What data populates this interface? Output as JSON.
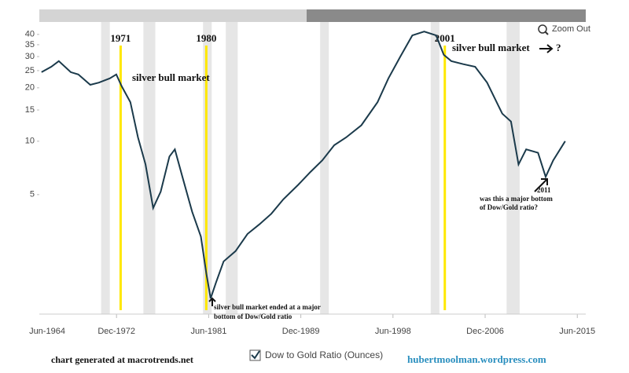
{
  "chart_data": {
    "type": "line",
    "log_scale": true,
    "grid": false,
    "x": [
      1966.0,
      1966.9,
      1967.6,
      1968.7,
      1969.4,
      1970.5,
      1971.3,
      1972.3,
      1972.9,
      1973.4,
      1974.2,
      1974.9,
      1975.6,
      1976.3,
      1977.0,
      1977.8,
      1978.3,
      1979.0,
      1979.9,
      1980.7,
      1981.2,
      1981.6,
      1982.1,
      1982.8,
      1983.9,
      1985.0,
      1986.1,
      1987.2,
      1988.3,
      1989.7,
      1990.8,
      1991.9,
      1993.0,
      1994.1,
      1995.5,
      1997.0,
      1998.0,
      1999.1,
      2000.2,
      2001.3,
      2002.4,
      2003.1,
      2003.8,
      2004.9,
      2006.0,
      2007.1,
      2008.5,
      2009.3,
      2010.0,
      2010.7,
      2011.8,
      2012.5,
      2013.2,
      2014.3
    ],
    "series": [
      {
        "name": "Dow to Gold Ratio (Ounces)",
        "color": "#1b3a4b",
        "values": [
          24.5,
          26.3,
          28.3,
          24.5,
          23.8,
          20.8,
          21.4,
          22.6,
          23.8,
          20.4,
          16.6,
          10.5,
          7.4,
          4.2,
          5.2,
          8.2,
          9.0,
          6.3,
          4.0,
          2.9,
          1.8,
          1.3,
          1.6,
          2.1,
          2.4,
          3.0,
          3.4,
          3.9,
          4.7,
          5.7,
          6.7,
          7.8,
          9.5,
          10.5,
          12.3,
          16.6,
          22.6,
          30,
          39.5,
          41.5,
          39.5,
          30.7,
          28.3,
          27.2,
          26.3,
          21.4,
          14.3,
          12.9,
          7.4,
          9.0,
          8.6,
          6.3,
          7.8,
          10
        ]
      }
    ],
    "xlim": [
      1965.8,
      2016.2
    ],
    "ylim": [
      1.06,
      47
    ],
    "yticks": [
      5,
      10,
      15,
      20,
      25,
      30,
      35,
      40
    ],
    "xticks": [
      {
        "value": 1964.42,
        "label": "Jun-1964"
      },
      {
        "value": 1972.92,
        "label": "Dec-1972"
      },
      {
        "value": 1981.42,
        "label": "Jun-1981"
      },
      {
        "value": 1989.92,
        "label": "Dec-1989"
      },
      {
        "value": 1998.42,
        "label": "Jun-1998"
      },
      {
        "value": 2006.92,
        "label": "Dec-2006"
      },
      {
        "value": 2015.42,
        "label": "Jun-2015"
      }
    ],
    "shaded_regions": [
      [
        1971.5,
        1972.3
      ],
      [
        1975.4,
        1976.5
      ],
      [
        1980.9,
        1981.7
      ],
      [
        1983.0,
        1984.1
      ],
      [
        1991.7,
        1992.5
      ],
      [
        2001.9,
        2002.7
      ],
      [
        2008.9,
        2010.1
      ]
    ],
    "markers": [
      {
        "x": 1973.3,
        "label": "1971"
      },
      {
        "x": 1981.2,
        "label": "1980"
      },
      {
        "x": 2003.2,
        "label": "2001"
      }
    ],
    "notes": {
      "bull1": "silver bull market",
      "bull2": "silver bull market",
      "question": "?",
      "bottom": [
        "silver bull market ended at a major",
        "bottom of Dow/Gold ratio"
      ],
      "label2011": "2011",
      "q2011": [
        "was this a major bottom",
        "of Dow/Gold ratio?"
      ]
    },
    "zoom_out": "Zoom Out",
    "credit": "chart generated at macrotrends.net",
    "site": "hubertmoolman.wordpress.com"
  }
}
